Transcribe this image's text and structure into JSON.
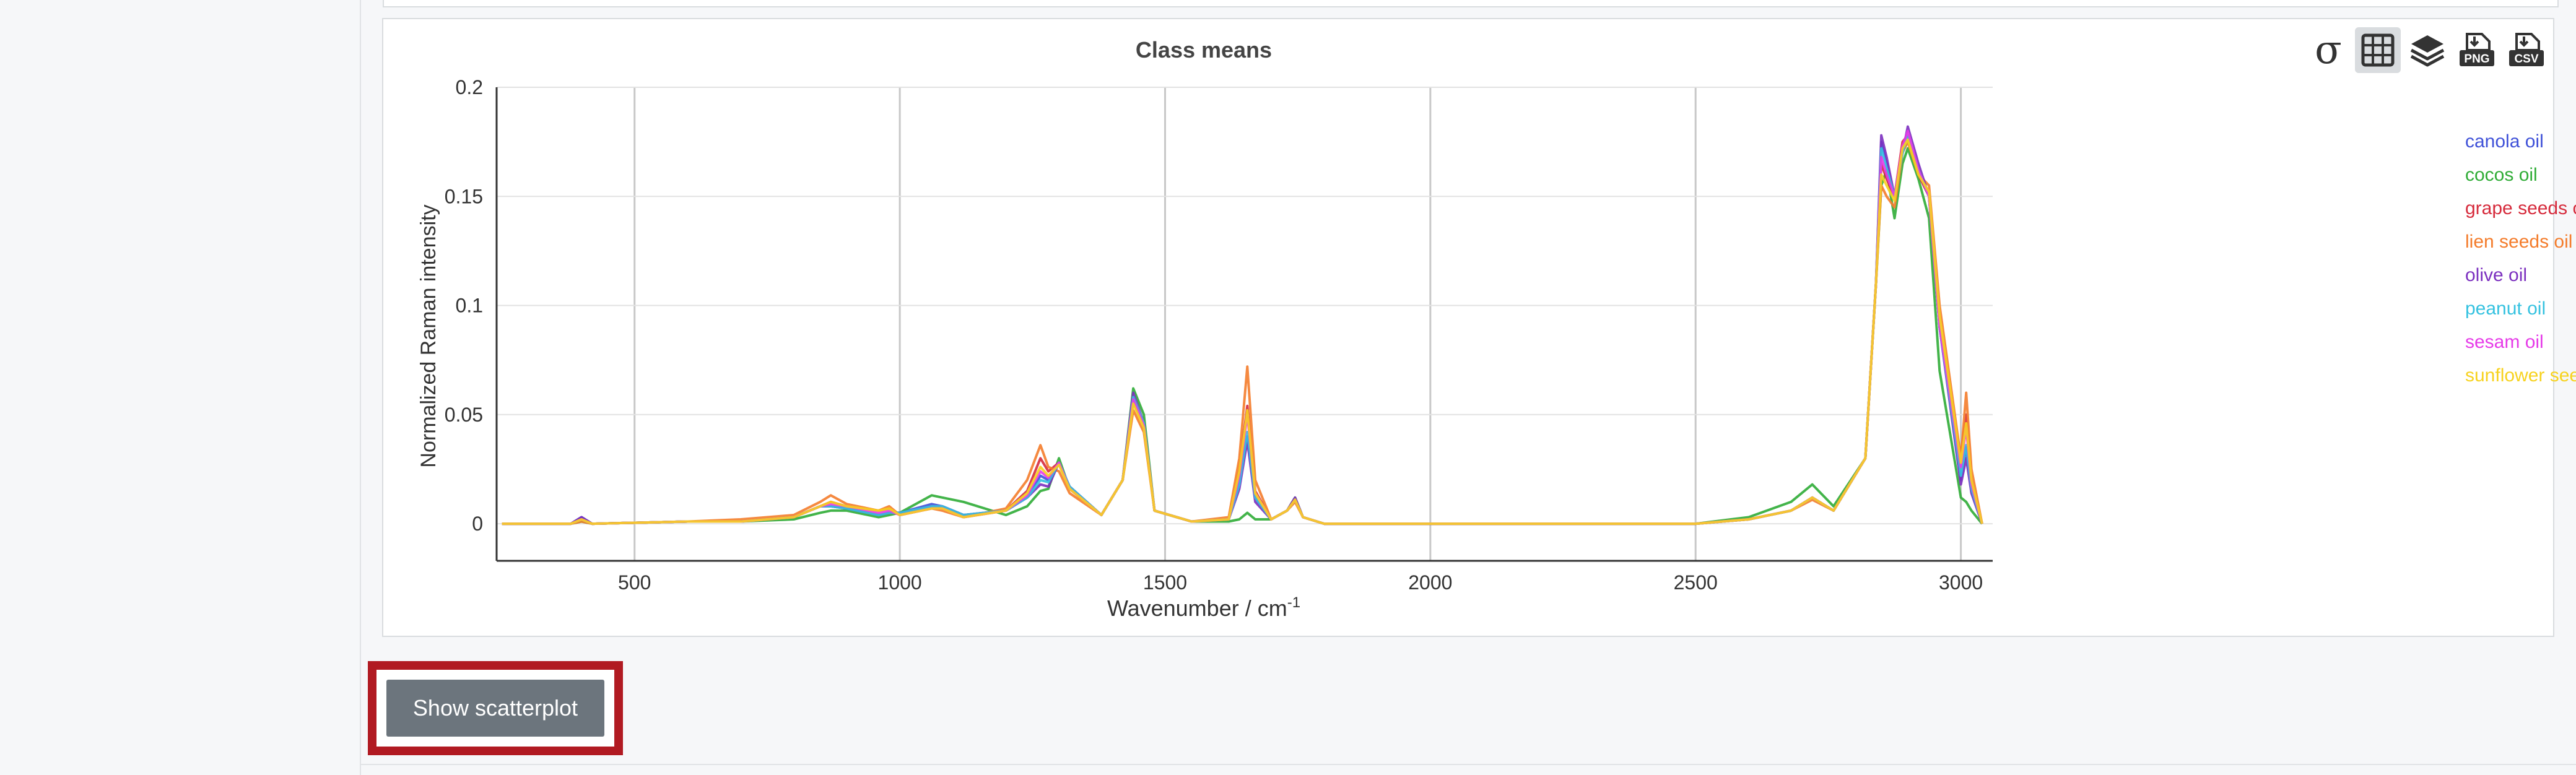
{
  "chart_data": {
    "type": "line",
    "title": "Class means",
    "xlabel": "Wavenumber / cm",
    "xlabel_sup": "-1",
    "ylabel": "Normalized Raman intensity",
    "xlim": [
      240,
      3060
    ],
    "ylim": [
      -0.017,
      0.2
    ],
    "x_ticks": [
      500,
      1000,
      1500,
      2000,
      2500,
      3000
    ],
    "y_ticks": [
      0,
      0.05,
      0.1,
      0.15,
      0.2
    ],
    "y_tick_labels": [
      "0",
      "0.05",
      "0.1",
      "0.15",
      "0.2"
    ],
    "grid": true,
    "legend_position": "right",
    "series": [
      {
        "name": "canola oil",
        "color": "#3f51d8",
        "x": [
          250,
          380,
          400,
          420,
          600,
          700,
          800,
          850,
          870,
          900,
          960,
          980,
          1000,
          1060,
          1080,
          1120,
          1200,
          1240,
          1265,
          1280,
          1300,
          1320,
          1380,
          1420,
          1440,
          1460,
          1480,
          1550,
          1620,
          1640,
          1655,
          1670,
          1700,
          1730,
          1745,
          1760,
          1800,
          2500,
          2600,
          2680,
          2720,
          2760,
          2820,
          2840,
          2850,
          2860,
          2875,
          2890,
          2900,
          2920,
          2940,
          2960,
          3000,
          3010,
          3020,
          3040
        ],
        "y": [
          0,
          0,
          0.003,
          0,
          0.001,
          0.001,
          0.003,
          0.008,
          0.008,
          0.007,
          0.004,
          0.005,
          0.005,
          0.009,
          0.008,
          0.004,
          0.006,
          0.012,
          0.022,
          0.02,
          0.028,
          0.017,
          0.004,
          0.02,
          0.058,
          0.045,
          0.006,
          0.001,
          0.002,
          0.02,
          0.04,
          0.012,
          0.002,
          0.006,
          0.011,
          0.003,
          0,
          0,
          0.002,
          0.006,
          0.012,
          0.006,
          0.03,
          0.11,
          0.175,
          0.165,
          0.15,
          0.17,
          0.176,
          0.16,
          0.15,
          0.09,
          0.02,
          0.035,
          0.015,
          0
        ]
      },
      {
        "name": "cocos oil",
        "color": "#2fac36",
        "x": [
          250,
          380,
          400,
          420,
          600,
          700,
          800,
          850,
          870,
          900,
          960,
          980,
          1000,
          1060,
          1080,
          1120,
          1200,
          1240,
          1265,
          1280,
          1300,
          1320,
          1380,
          1420,
          1440,
          1460,
          1480,
          1550,
          1620,
          1640,
          1655,
          1670,
          1700,
          1730,
          1745,
          1760,
          1800,
          2500,
          2600,
          2680,
          2720,
          2760,
          2820,
          2840,
          2850,
          2860,
          2875,
          2890,
          2900,
          2920,
          2940,
          2960,
          3000,
          3010,
          3020,
          3040
        ],
        "y": [
          0,
          0,
          0.001,
          0,
          0.001,
          0.001,
          0.002,
          0.005,
          0.006,
          0.006,
          0.003,
          0.004,
          0.005,
          0.013,
          0.012,
          0.01,
          0.004,
          0.008,
          0.015,
          0.016,
          0.03,
          0.016,
          0.004,
          0.02,
          0.062,
          0.05,
          0.006,
          0.001,
          0.001,
          0.002,
          0.005,
          0.002,
          0.002,
          0.006,
          0.012,
          0.003,
          0,
          0,
          0.003,
          0.01,
          0.018,
          0.008,
          0.03,
          0.11,
          0.155,
          0.162,
          0.14,
          0.165,
          0.172,
          0.158,
          0.14,
          0.07,
          0.012,
          0.01,
          0.006,
          0
        ]
      },
      {
        "name": "grape seeds oil",
        "color": "#d62b3c",
        "x": [
          250,
          380,
          400,
          420,
          600,
          700,
          800,
          850,
          870,
          900,
          960,
          980,
          1000,
          1060,
          1080,
          1120,
          1200,
          1240,
          1265,
          1280,
          1300,
          1320,
          1380,
          1420,
          1440,
          1460,
          1480,
          1550,
          1620,
          1640,
          1655,
          1670,
          1700,
          1730,
          1745,
          1760,
          1800,
          2500,
          2600,
          2680,
          2720,
          2760,
          2820,
          2840,
          2850,
          2860,
          2875,
          2890,
          2900,
          2920,
          2940,
          2960,
          3000,
          3010,
          3020,
          3040
        ],
        "y": [
          0,
          0,
          0.002,
          0,
          0.001,
          0.001,
          0.003,
          0.008,
          0.01,
          0.008,
          0.006,
          0.007,
          0.004,
          0.007,
          0.007,
          0.003,
          0.006,
          0.015,
          0.03,
          0.024,
          0.028,
          0.016,
          0.004,
          0.02,
          0.056,
          0.045,
          0.006,
          0.001,
          0.002,
          0.025,
          0.054,
          0.015,
          0.002,
          0.006,
          0.011,
          0.003,
          0,
          0,
          0.002,
          0.006,
          0.012,
          0.006,
          0.03,
          0.11,
          0.165,
          0.158,
          0.15,
          0.175,
          0.178,
          0.16,
          0.15,
          0.09,
          0.03,
          0.05,
          0.02,
          0
        ]
      },
      {
        "name": "lien seeds oil",
        "color": "#f47c2b",
        "x": [
          250,
          380,
          400,
          420,
          600,
          700,
          800,
          850,
          870,
          900,
          960,
          980,
          1000,
          1060,
          1080,
          1120,
          1200,
          1240,
          1265,
          1280,
          1300,
          1320,
          1380,
          1420,
          1440,
          1460,
          1480,
          1550,
          1620,
          1640,
          1655,
          1670,
          1700,
          1730,
          1745,
          1760,
          1800,
          2500,
          2600,
          2680,
          2720,
          2760,
          2820,
          2840,
          2850,
          2860,
          2875,
          2890,
          2900,
          2920,
          2940,
          2960,
          3000,
          3010,
          3020,
          3040
        ],
        "y": [
          0,
          0,
          0.001,
          0,
          0.001,
          0.002,
          0.004,
          0.01,
          0.013,
          0.009,
          0.006,
          0.008,
          0.004,
          0.007,
          0.006,
          0.003,
          0.007,
          0.02,
          0.036,
          0.026,
          0.024,
          0.014,
          0.004,
          0.02,
          0.052,
          0.042,
          0.006,
          0.001,
          0.003,
          0.03,
          0.072,
          0.02,
          0.002,
          0.006,
          0.01,
          0.003,
          0,
          0,
          0.002,
          0.006,
          0.011,
          0.006,
          0.03,
          0.11,
          0.155,
          0.15,
          0.145,
          0.17,
          0.175,
          0.16,
          0.155,
          0.1,
          0.03,
          0.06,
          0.025,
          0
        ]
      },
      {
        "name": "olive oil",
        "color": "#7b2fbf",
        "x": [
          250,
          380,
          400,
          420,
          600,
          700,
          800,
          850,
          870,
          900,
          960,
          980,
          1000,
          1060,
          1080,
          1120,
          1200,
          1240,
          1265,
          1280,
          1300,
          1320,
          1380,
          1420,
          1440,
          1460,
          1480,
          1550,
          1620,
          1640,
          1655,
          1670,
          1700,
          1730,
          1745,
          1760,
          1800,
          2500,
          2600,
          2680,
          2720,
          2760,
          2820,
          2840,
          2850,
          2860,
          2875,
          2890,
          2900,
          2920,
          2940,
          2960,
          3000,
          3010,
          3020,
          3040
        ],
        "y": [
          0,
          0,
          0.003,
          0,
          0.001,
          0.001,
          0.003,
          0.008,
          0.008,
          0.007,
          0.004,
          0.005,
          0.005,
          0.008,
          0.008,
          0.004,
          0.006,
          0.012,
          0.018,
          0.017,
          0.028,
          0.017,
          0.004,
          0.02,
          0.06,
          0.046,
          0.006,
          0.001,
          0.002,
          0.016,
          0.038,
          0.01,
          0.002,
          0.006,
          0.012,
          0.003,
          0,
          0,
          0.002,
          0.006,
          0.012,
          0.006,
          0.03,
          0.11,
          0.178,
          0.168,
          0.15,
          0.17,
          0.182,
          0.165,
          0.15,
          0.09,
          0.018,
          0.03,
          0.014,
          0
        ]
      },
      {
        "name": "peanut oil",
        "color": "#35c2e0",
        "x": [
          250,
          380,
          400,
          420,
          600,
          700,
          800,
          850,
          870,
          900,
          960,
          980,
          1000,
          1060,
          1080,
          1120,
          1200,
          1240,
          1265,
          1280,
          1300,
          1320,
          1380,
          1420,
          1440,
          1460,
          1480,
          1550,
          1620,
          1640,
          1655,
          1670,
          1700,
          1730,
          1745,
          1760,
          1800,
          2500,
          2600,
          2680,
          2720,
          2760,
          2820,
          2840,
          2850,
          2860,
          2875,
          2890,
          2900,
          2920,
          2940,
          2960,
          3000,
          3010,
          3020,
          3040
        ],
        "y": [
          0,
          0,
          0.002,
          0,
          0.001,
          0.001,
          0.003,
          0.008,
          0.008,
          0.007,
          0.004,
          0.005,
          0.005,
          0.008,
          0.008,
          0.004,
          0.006,
          0.012,
          0.02,
          0.019,
          0.028,
          0.017,
          0.004,
          0.02,
          0.058,
          0.046,
          0.006,
          0.001,
          0.002,
          0.018,
          0.042,
          0.012,
          0.002,
          0.006,
          0.011,
          0.003,
          0,
          0,
          0.002,
          0.006,
          0.012,
          0.006,
          0.03,
          0.11,
          0.172,
          0.163,
          0.15,
          0.17,
          0.178,
          0.162,
          0.15,
          0.09,
          0.022,
          0.036,
          0.016,
          0
        ]
      },
      {
        "name": "sesam oil",
        "color": "#e63be8",
        "x": [
          250,
          380,
          400,
          420,
          600,
          700,
          800,
          850,
          870,
          900,
          960,
          980,
          1000,
          1060,
          1080,
          1120,
          1200,
          1240,
          1265,
          1280,
          1300,
          1320,
          1380,
          1420,
          1440,
          1460,
          1480,
          1550,
          1620,
          1640,
          1655,
          1670,
          1700,
          1730,
          1745,
          1760,
          1800,
          2500,
          2600,
          2680,
          2720,
          2760,
          2820,
          2840,
          2850,
          2860,
          2875,
          2890,
          2900,
          2920,
          2940,
          2960,
          3000,
          3010,
          3020,
          3040
        ],
        "y": [
          0,
          0,
          0.002,
          0,
          0.001,
          0.001,
          0.003,
          0.008,
          0.009,
          0.008,
          0.005,
          0.006,
          0.004,
          0.007,
          0.007,
          0.003,
          0.006,
          0.013,
          0.024,
          0.021,
          0.028,
          0.016,
          0.004,
          0.02,
          0.057,
          0.045,
          0.006,
          0.001,
          0.002,
          0.022,
          0.05,
          0.014,
          0.002,
          0.006,
          0.011,
          0.003,
          0,
          0,
          0.002,
          0.006,
          0.012,
          0.006,
          0.03,
          0.11,
          0.168,
          0.16,
          0.15,
          0.173,
          0.18,
          0.162,
          0.15,
          0.09,
          0.026,
          0.044,
          0.018,
          0
        ]
      },
      {
        "name": "sunflower seeds oil",
        "color": "#f7d21e",
        "x": [
          250,
          380,
          400,
          420,
          600,
          700,
          800,
          850,
          870,
          900,
          960,
          980,
          1000,
          1060,
          1080,
          1120,
          1200,
          1240,
          1265,
          1280,
          1300,
          1320,
          1380,
          1420,
          1440,
          1460,
          1480,
          1550,
          1620,
          1640,
          1655,
          1670,
          1700,
          1730,
          1745,
          1760,
          1800,
          2500,
          2600,
          2680,
          2720,
          2760,
          2820,
          2840,
          2850,
          2860,
          2875,
          2890,
          2900,
          2920,
          2940,
          2960,
          3000,
          3010,
          3020,
          3040
        ],
        "y": [
          0,
          0,
          0.002,
          0,
          0.001,
          0.001,
          0.003,
          0.008,
          0.01,
          0.008,
          0.006,
          0.007,
          0.004,
          0.007,
          0.007,
          0.003,
          0.006,
          0.014,
          0.026,
          0.022,
          0.027,
          0.016,
          0.004,
          0.02,
          0.055,
          0.044,
          0.006,
          0.001,
          0.002,
          0.024,
          0.052,
          0.014,
          0.002,
          0.006,
          0.011,
          0.003,
          0,
          0,
          0.002,
          0.006,
          0.012,
          0.006,
          0.03,
          0.11,
          0.16,
          0.155,
          0.148,
          0.172,
          0.176,
          0.16,
          0.152,
          0.095,
          0.028,
          0.046,
          0.02,
          0
        ]
      }
    ]
  },
  "toolbar": {
    "icons": [
      "sigma-icon",
      "grid-icon",
      "layers-icon",
      "download-png-icon",
      "download-csv-icon"
    ],
    "sigma_glyph": "σ",
    "png_text": "PNG",
    "csv_text": "CSV"
  },
  "actions": {
    "scatter_button_label": "Show scatterplot",
    "highlight_color": "#b11a22"
  }
}
